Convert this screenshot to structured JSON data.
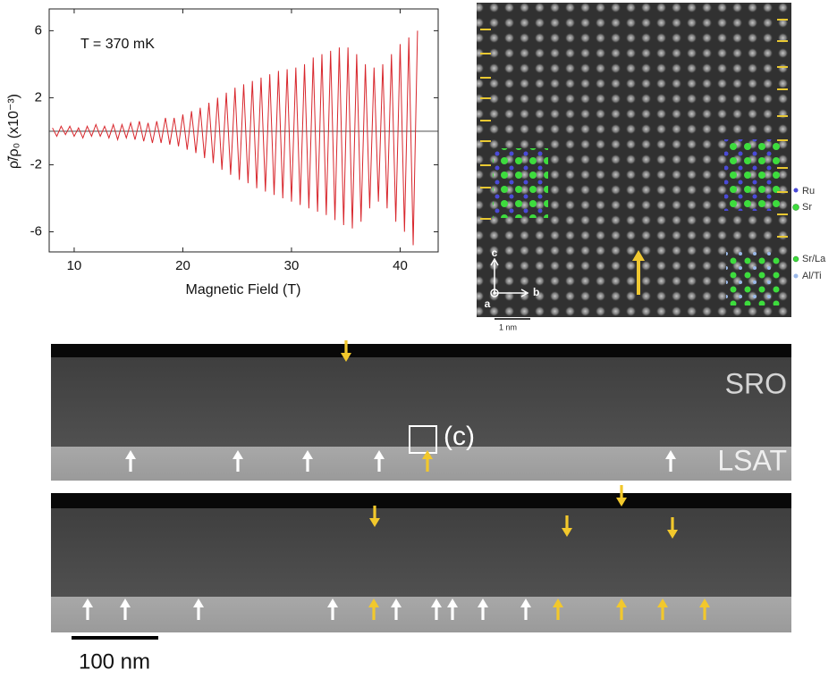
{
  "chart_data": {
    "type": "line",
    "annotation": "T = 370 mK",
    "xlabel": "Magnetic Field (T)",
    "ylabel": "ρ̃/ρ₀ (x10⁻³)",
    "color": "#d8262c",
    "reference_line": 0,
    "x": [
      8.0,
      8.4,
      8.8,
      9.2,
      9.6,
      10.0,
      10.4,
      10.8,
      11.2,
      11.6,
      12.0,
      12.4,
      12.8,
      13.2,
      13.6,
      14.0,
      14.4,
      14.8,
      15.2,
      15.6,
      16.0,
      16.4,
      16.8,
      17.2,
      17.6,
      18.0,
      18.4,
      18.8,
      19.2,
      19.6,
      20.0,
      20.4,
      20.8,
      21.2,
      21.6,
      22.0,
      22.4,
      22.8,
      23.2,
      23.6,
      24.0,
      24.4,
      24.8,
      25.2,
      25.6,
      26.0,
      26.4,
      26.8,
      27.2,
      27.6,
      28.0,
      28.4,
      28.8,
      29.2,
      29.6,
      30.0,
      30.4,
      30.8,
      31.2,
      31.6,
      32.0,
      32.4,
      32.8,
      33.2,
      33.6,
      34.0,
      34.4,
      34.8,
      35.2,
      35.6,
      36.0,
      36.4,
      36.8,
      37.2,
      37.6,
      38.0,
      38.4,
      38.8,
      39.2,
      39.6,
      40.0,
      40.4,
      40.8,
      41.2,
      41.6
    ],
    "values": [
      0.2,
      -0.3,
      0.3,
      -0.2,
      0.3,
      -0.3,
      0.2,
      -0.4,
      0.3,
      -0.3,
      0.4,
      -0.3,
      0.3,
      -0.4,
      0.4,
      -0.5,
      0.4,
      -0.4,
      0.5,
      -0.5,
      0.6,
      -0.6,
      0.5,
      -0.7,
      0.6,
      -0.7,
      0.8,
      -0.8,
      0.8,
      -0.9,
      1.0,
      -1.1,
      1.2,
      -1.3,
      1.4,
      -1.6,
      1.7,
      -1.9,
      2.0,
      -2.3,
      2.3,
      -2.6,
      2.6,
      -2.9,
      2.8,
      -3.1,
      3.0,
      -3.4,
      3.2,
      -3.6,
      3.4,
      -3.8,
      3.6,
      -4.0,
      3.7,
      -4.2,
      3.8,
      -4.4,
      4.0,
      -4.6,
      4.4,
      -4.8,
      4.6,
      -5.0,
      4.8,
      -5.3,
      5.0,
      -5.6,
      5.0,
      -5.8,
      4.6,
      -5.4,
      4.0,
      -4.6,
      3.8,
      -4.2,
      4.0,
      -4.6,
      4.6,
      -5.4,
      5.2,
      -6.0,
      5.6,
      -6.8,
      6.0
    ],
    "xlim": [
      7.7,
      43.5
    ],
    "xticks": [
      10,
      20,
      30,
      40
    ],
    "ylim": [
      -7.2,
      7.3
    ],
    "yticks": [
      -6,
      -2,
      2,
      6
    ]
  },
  "stem_image": {
    "legend": [
      "Ru",
      "Sr",
      "Sr/La",
      "Al/Ti"
    ],
    "axes": [
      "c",
      "b",
      "a"
    ],
    "scale_bar": "1 nm"
  },
  "cross_section": {
    "layers": [
      "SRO",
      "LSAT"
    ],
    "box_label": "(c)",
    "scale_bar": "100 nm"
  }
}
